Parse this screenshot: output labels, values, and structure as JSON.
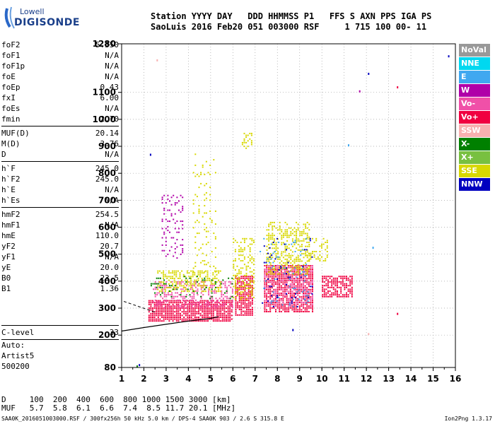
{
  "logo": {
    "brand": "Lowell",
    "product": "DIGISONDE"
  },
  "header": {
    "line1": "Station YYYY DAY   DDD HHMMSS P1   FFS S AXN PPS IGA PS",
    "line2": "SaoLuis 2016 Feb20 051 003000 RSF     1 715 100 00- 11"
  },
  "params": [
    {
      "name": "foF2",
      "value": "5.350"
    },
    {
      "name": "foF1",
      "value": "N/A"
    },
    {
      "name": "foF1p",
      "value": "N/A"
    },
    {
      "name": "foE",
      "value": "N/A"
    },
    {
      "name": "foEp",
      "value": "0.43"
    },
    {
      "name": "fxI",
      "value": "6.00"
    },
    {
      "name": "foEs",
      "value": "N/A"
    },
    {
      "name": "fmin",
      "value": "2.70"
    },
    {
      "sep": true
    },
    {
      "name": "MUF(D)",
      "value": "20.14"
    },
    {
      "name": "M(D)",
      "value": "3.76"
    },
    {
      "name": "D",
      "value": "N/A"
    },
    {
      "sep": true
    },
    {
      "name": "h`F",
      "value": "245.0"
    },
    {
      "name": "h`F2",
      "value": "245.0"
    },
    {
      "name": "h`E",
      "value": "N/A"
    },
    {
      "name": "h`Es",
      "value": "N/A"
    },
    {
      "sep": true
    },
    {
      "name": "hmF2",
      "value": "254.5"
    },
    {
      "name": "hmF1",
      "value": "N/A"
    },
    {
      "name": "hmE",
      "value": "110.0"
    },
    {
      "name": "yF2",
      "value": "20.7"
    },
    {
      "name": "yF1",
      "value": "N/A"
    },
    {
      "name": "yE",
      "value": "20.0"
    },
    {
      "name": "B0",
      "value": "23.5"
    },
    {
      "name": "B1",
      "value": "1.36"
    }
  ],
  "clevel": {
    "name": "C-level",
    "value": "33"
  },
  "auto": [
    "Auto:",
    "Artist5",
    "500200"
  ],
  "dmuf": {
    "d_line": "D     100  200  400  600  800 1000 1500 3000 [km]",
    "muf_line": "MUF   5.7  5.8  6.1  6.6  7.4  8.5 11.7 20.1 [MHz]"
  },
  "footer": {
    "file": "SAA0K_2016051003000.RSF / 300fx256h 50 kHz 5.0 km / DPS-4 SAA0K 903 / 2.6 S 315.8 E",
    "version": "Ion2Png 1.3.17"
  },
  "legend": [
    {
      "label": "NoVal",
      "bg": "#999999",
      "fg": "#ffffff"
    },
    {
      "label": "NNE",
      "bg": "#00d8f0",
      "fg": "#ffffff"
    },
    {
      "label": "E",
      "bg": "#40a8f0",
      "fg": "#ffffff"
    },
    {
      "label": "W",
      "bg": "#b000a8",
      "fg": "#ffffff"
    },
    {
      "label": "Vo-",
      "bg": "#f050a8",
      "fg": "#ffffff"
    },
    {
      "label": "Vo+",
      "bg": "#f00040",
      "fg": "#ffffff"
    },
    {
      "label": "SSW",
      "bg": "#f8b0b0",
      "fg": "#ffffff"
    },
    {
      "label": "X-",
      "bg": "#008000",
      "fg": "#ffffff"
    },
    {
      "label": "X+",
      "bg": "#78c040",
      "fg": "#ffffff"
    },
    {
      "label": "SSE",
      "bg": "#d8d800",
      "fg": "#ffffff"
    },
    {
      "label": "NNW",
      "bg": "#0000c0",
      "fg": "#ffffff"
    }
  ],
  "chart_data": {
    "type": "scatter",
    "xlim": [
      1,
      16
    ],
    "ylim": [
      80,
      1280
    ],
    "yscale": "linear",
    "xticks": [
      "1",
      "2",
      "3",
      "4",
      "5",
      "6",
      "7",
      "8",
      "9",
      "10",
      "11",
      "12",
      "13",
      "14",
      "15",
      "16"
    ],
    "yticks": [
      "80",
      "200",
      "300",
      "400",
      "500",
      "600",
      "700",
      "800",
      "900",
      "1000",
      "1100",
      "1280"
    ],
    "grid": "dotted",
    "trace": {
      "name": "",
      "x": [
        1.0,
        2.0,
        3.0,
        4.0,
        5.0,
        5.35
      ],
      "y": [
        215,
        228,
        240,
        252,
        262,
        268
      ]
    },
    "trace2": {
      "x": [
        1.1,
        1.8,
        2.5
      ],
      "y": [
        325,
        305,
        285
      ]
    },
    "echo_regions": [
      {
        "x": [
          2.2,
          6.0
        ],
        "y": [
          250,
          330
        ],
        "color": "#f00040",
        "density": 0.85
      },
      {
        "x": [
          6.1,
          6.9
        ],
        "y": [
          270,
          420
        ],
        "color": "#f00040",
        "density": 0.8
      },
      {
        "x": [
          7.4,
          9.6
        ],
        "y": [
          280,
          460
        ],
        "color": "#f00040",
        "density": 0.8
      },
      {
        "x": [
          10.0,
          11.4
        ],
        "y": [
          340,
          420
        ],
        "color": "#f00040",
        "density": 0.7
      },
      {
        "x": [
          2.4,
          6.0
        ],
        "y": [
          300,
          400
        ],
        "color": "#f050a8",
        "density": 0.4
      },
      {
        "x": [
          7.4,
          9.6
        ],
        "y": [
          300,
          460
        ],
        "color": "#f050a8",
        "density": 0.35
      },
      {
        "x": [
          2.6,
          5.5
        ],
        "y": [
          360,
          440
        ],
        "color": "#d8d800",
        "density": 0.45
      },
      {
        "x": [
          6.0,
          7.0
        ],
        "y": [
          330,
          560
        ],
        "color": "#d8d800",
        "density": 0.35
      },
      {
        "x": [
          7.5,
          9.5
        ],
        "y": [
          420,
          620
        ],
        "color": "#d8d800",
        "density": 0.4
      },
      {
        "x": [
          9.3,
          10.3
        ],
        "y": [
          470,
          560
        ],
        "color": "#d8d800",
        "density": 0.35
      },
      {
        "x": [
          2.8,
          3.8
        ],
        "y": [
          480,
          720
        ],
        "color": "#b000a8",
        "density": 0.18
      },
      {
        "x": [
          4.2,
          5.3
        ],
        "y": [
          430,
          880
        ],
        "color": "#d8d800",
        "density": 0.1
      },
      {
        "x": [
          2.3,
          6.0
        ],
        "y": [
          330,
          420
        ],
        "color": "#008000",
        "density": 0.1
      },
      {
        "x": [
          7.3,
          9.6
        ],
        "y": [
          300,
          560
        ],
        "color": "#0000c0",
        "density": 0.05
      },
      {
        "x": [
          7.2,
          9.5
        ],
        "y": [
          300,
          560
        ],
        "color": "#40a8f0",
        "density": 0.05
      },
      {
        "x": [
          6.4,
          6.9
        ],
        "y": [
          880,
          950
        ],
        "color": "#d8d800",
        "density": 0.35
      }
    ],
    "isolated_points": [
      {
        "x": 2.3,
        "y": 870,
        "color": "#0000c0"
      },
      {
        "x": 11.7,
        "y": 1105,
        "color": "#b000a8"
      },
      {
        "x": 12.1,
        "y": 1170,
        "color": "#0000c0"
      },
      {
        "x": 13.4,
        "y": 1120,
        "color": "#f00040"
      },
      {
        "x": 15.7,
        "y": 1235,
        "color": "#0000c0"
      },
      {
        "x": 11.2,
        "y": 905,
        "color": "#40a8f0"
      },
      {
        "x": 12.3,
        "y": 525,
        "color": "#40a8f0"
      },
      {
        "x": 13.4,
        "y": 280,
        "color": "#f00040"
      },
      {
        "x": 8.7,
        "y": 220,
        "color": "#0000c0"
      },
      {
        "x": 12.1,
        "y": 205,
        "color": "#f8b0b0"
      },
      {
        "x": 1.8,
        "y": 90,
        "color": "#0000c0"
      },
      {
        "x": 1.7,
        "y": 85,
        "color": "#008000"
      },
      {
        "x": 2.6,
        "y": 1220,
        "color": "#f8b0b0"
      }
    ]
  }
}
